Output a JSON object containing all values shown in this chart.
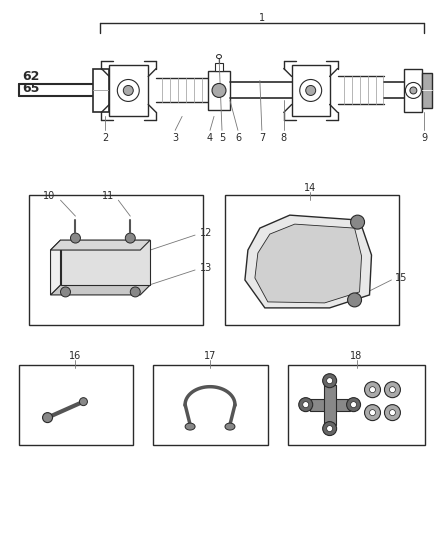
{
  "bg_color": "#ffffff",
  "line_color": "#2a2a2a",
  "gray_color": "#777777",
  "light_gray": "#aaaaaa",
  "dark_gray": "#555555",
  "fig_width": 4.38,
  "fig_height": 5.33,
  "dpi": 100
}
